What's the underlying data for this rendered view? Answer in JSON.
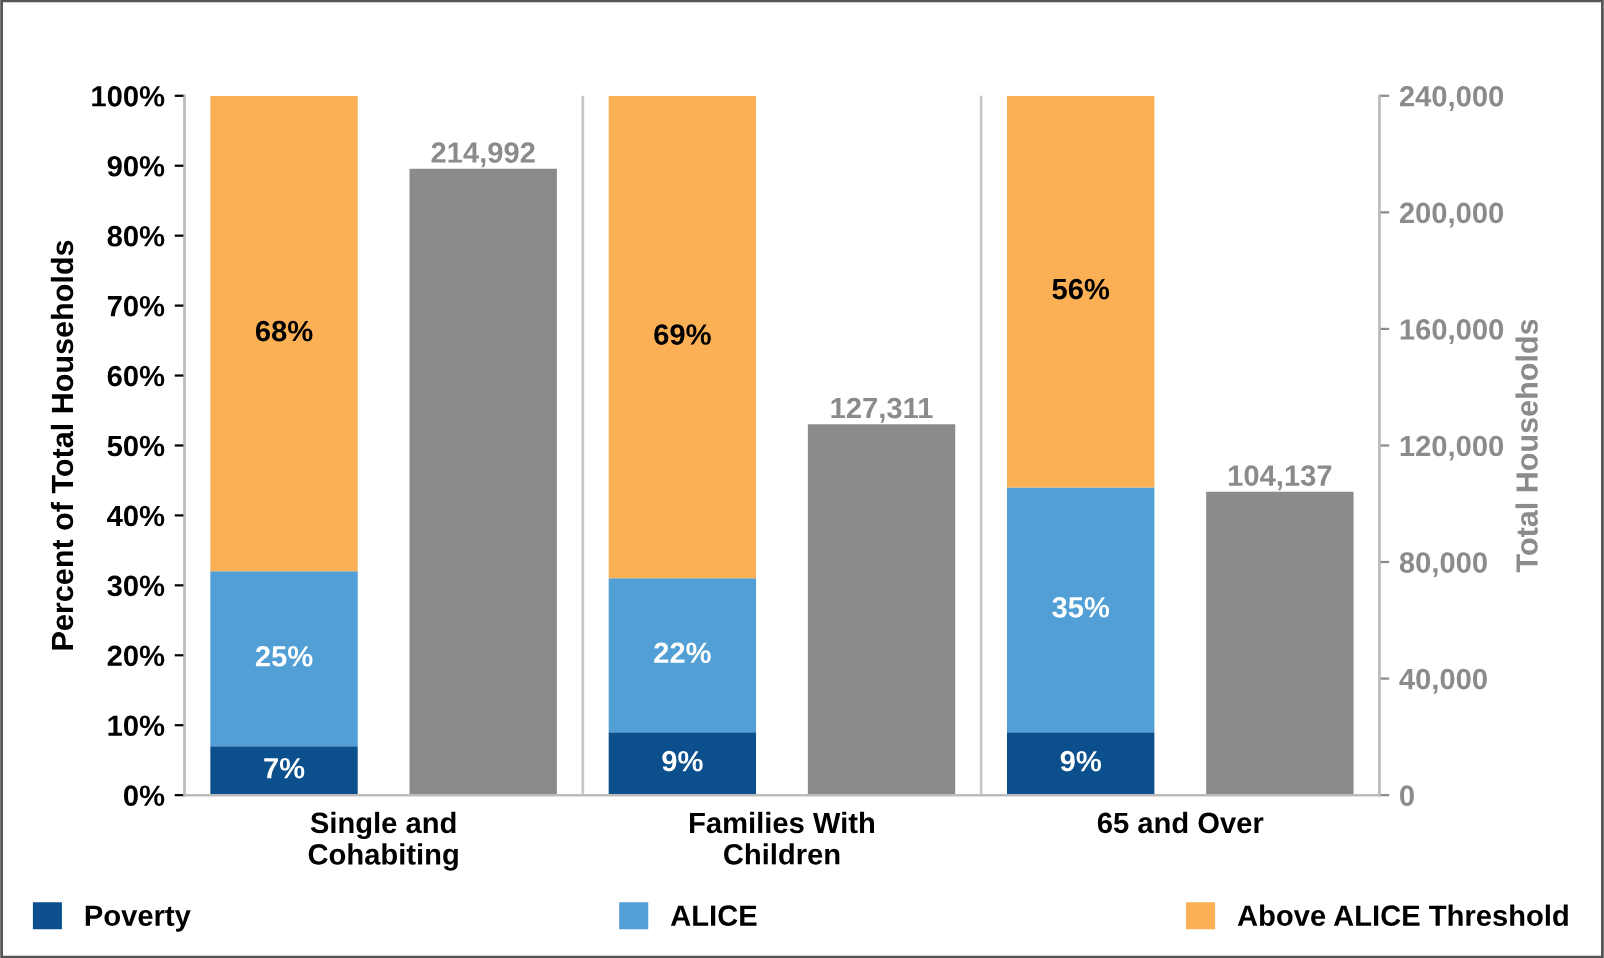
{
  "chart_data": {
    "type": "bar",
    "stacked": true,
    "categories": [
      "Single and\nCohabiting",
      "Families With\nChildren",
      "65 and Over"
    ],
    "ylabel": "Percent of Total Households",
    "y2label": "Total Households",
    "series": [
      {
        "name": "Poverty",
        "color": "#0b4f8c",
        "values": [
          7,
          9,
          9
        ],
        "value_labels": [
          "7%",
          "9%",
          "9%"
        ]
      },
      {
        "name": "ALICE",
        "color": "#519fd4",
        "values": [
          25,
          22,
          35
        ],
        "value_labels": [
          "25%",
          "22%",
          "35%"
        ]
      },
      {
        "name": "Above ALICE Threshold",
        "color": "#fcb055",
        "values": [
          68,
          69,
          56
        ],
        "value_labels": [
          "68%",
          "69%",
          "56%"
        ]
      },
      {
        "axis": "y2",
        "color": "#8b8b8b",
        "values": [
          214992,
          127311,
          104137
        ],
        "value_labels": [
          "214,992",
          "127,311",
          "104,137"
        ]
      }
    ],
    "ylim": [
      0,
      100
    ],
    "yticks": [
      {
        "value": 0,
        "label": "0%"
      },
      {
        "value": 10,
        "label": "10%"
      },
      {
        "value": 20,
        "label": "20%"
      },
      {
        "value": 30,
        "label": "30%"
      },
      {
        "value": 40,
        "label": "40%"
      },
      {
        "value": 50,
        "label": "50%"
      },
      {
        "value": 60,
        "label": "60%"
      },
      {
        "value": 70,
        "label": "70%"
      },
      {
        "value": 80,
        "label": "80%"
      },
      {
        "value": 90,
        "label": "90%"
      },
      {
        "value": 100,
        "label": "100%"
      }
    ],
    "y2lim": [
      0,
      240000
    ],
    "y2ticks": [
      {
        "value": 0,
        "label": "0"
      },
      {
        "value": 40000,
        "label": "40,000"
      },
      {
        "value": 80000,
        "label": "80,000"
      },
      {
        "value": 120000,
        "label": "120,000"
      },
      {
        "value": 160000,
        "label": "160,000"
      },
      {
        "value": 200000,
        "label": "200,000"
      },
      {
        "value": 240000,
        "label": "240,000"
      }
    ],
    "grid": false,
    "legend": "bottom"
  }
}
